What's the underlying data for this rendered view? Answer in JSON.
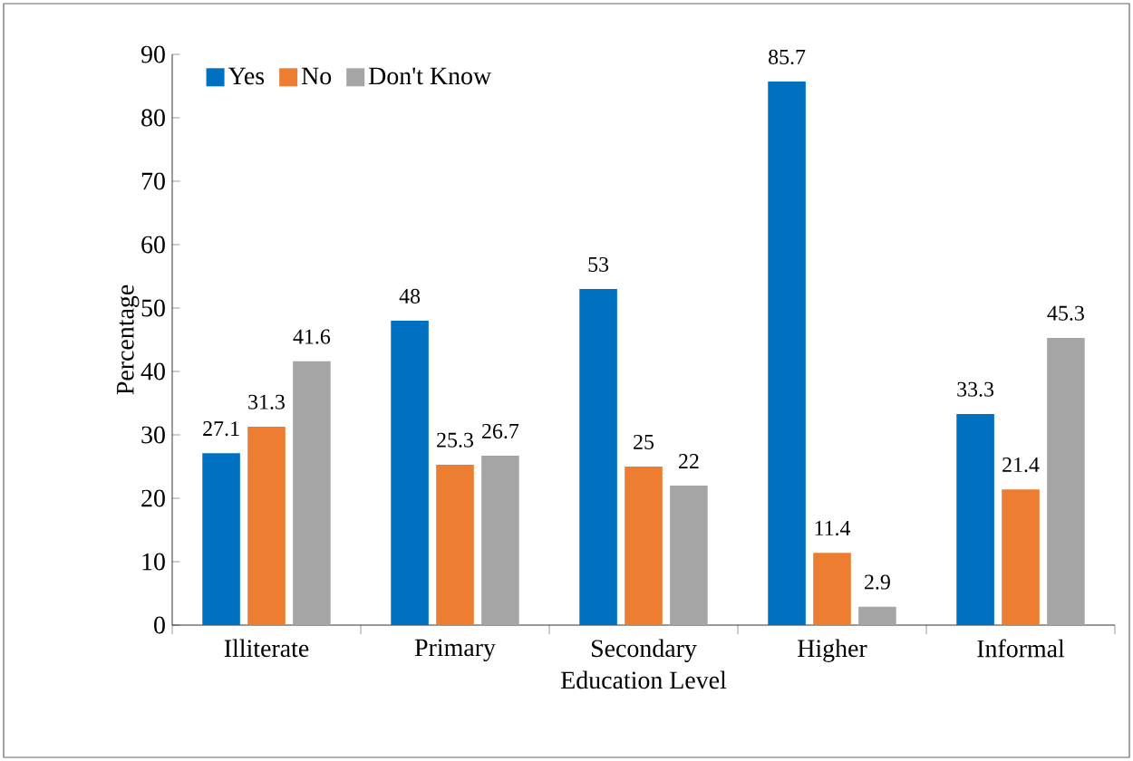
{
  "chart_data": {
    "type": "bar",
    "xlabel": "Education Level",
    "ylabel": "Percentage",
    "categories": [
      "Illiterate",
      "Primary",
      "Secondary",
      "Higher",
      "Informal"
    ],
    "series": [
      {
        "name": "Yes",
        "color": "#0070c0",
        "values": [
          27.1,
          48,
          53,
          85.7,
          33.3
        ]
      },
      {
        "name": "No",
        "color": "#ed7d31",
        "values": [
          31.3,
          25.3,
          25,
          11.4,
          21.4
        ]
      },
      {
        "name": "Don't Know",
        "color": "#a5a5a5",
        "values": [
          41.6,
          26.7,
          22,
          2.9,
          45.3
        ]
      }
    ],
    "ylim": [
      0,
      90
    ],
    "yticks": [
      0,
      10,
      20,
      30,
      40,
      50,
      60,
      70,
      80,
      90
    ],
    "data_labels": true,
    "legend": "top left",
    "grid": false
  }
}
